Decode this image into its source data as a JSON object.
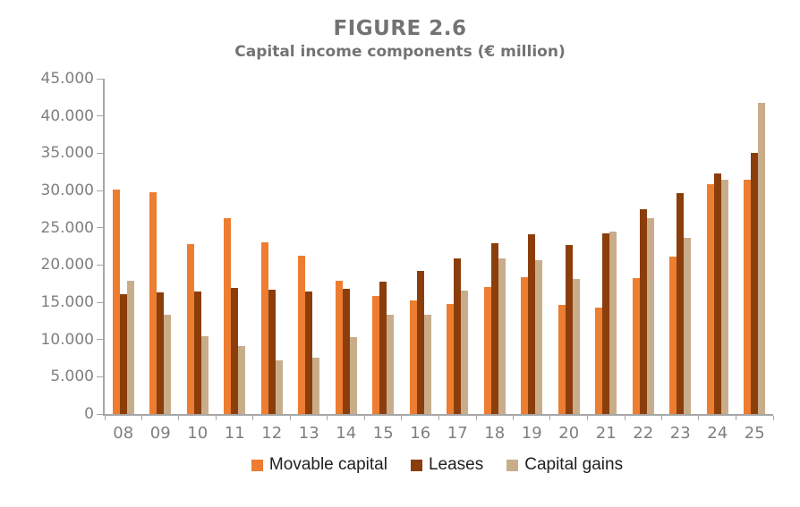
{
  "title": "FIGURE 2.6",
  "subtitle": "Capital income components (€ million)",
  "chart_data": {
    "type": "bar",
    "title": "FIGURE 2.6",
    "subtitle": "Capital income components (€ million)",
    "categories": [
      "08",
      "09",
      "10",
      "11",
      "12",
      "13",
      "14",
      "15",
      "16",
      "17",
      "18",
      "19",
      "20",
      "21",
      "22",
      "23",
      "24",
      "25"
    ],
    "series": [
      {
        "name": "Movable capital",
        "color": "#ED7D31",
        "values": [
          30100,
          29800,
          22800,
          26300,
          23100,
          21300,
          17900,
          15800,
          15300,
          14800,
          17100,
          18400,
          14700,
          14300,
          18300,
          21100,
          30900,
          31500
        ]
      },
      {
        "name": "Leases",
        "color": "#8B3E0C",
        "values": [
          16100,
          16300,
          16500,
          16900,
          16700,
          16400,
          16800,
          17800,
          19200,
          20900,
          22900,
          24100,
          22700,
          24200,
          27500,
          29700,
          32300,
          35000
        ]
      },
      {
        "name": "Capital gains",
        "color": "#C9AD8B",
        "values": [
          17900,
          13300,
          10400,
          9100,
          7200,
          7600,
          10300,
          13300,
          13300,
          16600,
          20900,
          20700,
          18100,
          24500,
          26300,
          23700,
          31400,
          41800
        ]
      }
    ],
    "ylim": [
      0,
      45000
    ],
    "ytick_step": 5000,
    "ytick_labels": [
      "0",
      "5.000",
      "10.000",
      "15.000",
      "20.000",
      "25.000",
      "30.000",
      "35.000",
      "40.000",
      "45.000"
    ],
    "xlabel": "",
    "ylabel": "",
    "grid": false,
    "legend_position": "bottom"
  },
  "colors": {
    "axis_line": "#a6a6a6",
    "tick_label_text": "#7f7f7f",
    "title_text": "#737373",
    "legend_text": "#1f1f1f"
  }
}
